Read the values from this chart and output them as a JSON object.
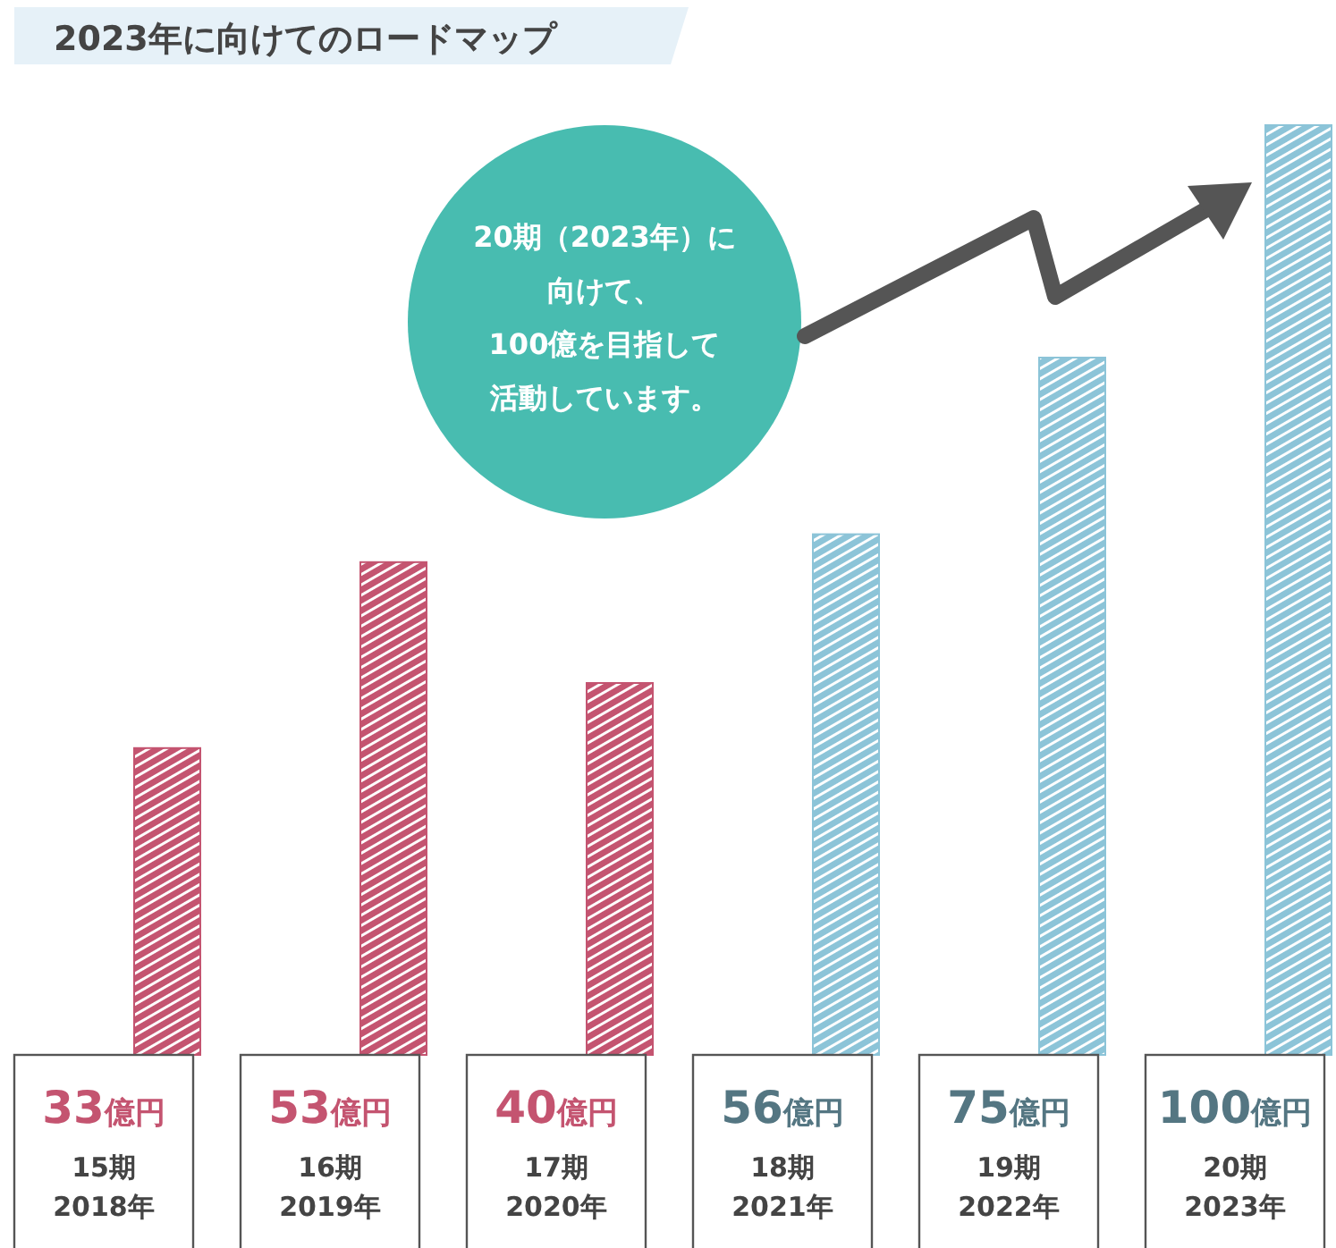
{
  "chart_data": {
    "type": "bar",
    "title": "2023年に向けてのロードマップ",
    "categories": [
      "15期\n2018年",
      "16期\n2019年",
      "17期\n2020年",
      "18期\n2021年",
      "19期\n2022年",
      "20期\n2023年"
    ],
    "values": [
      33,
      53,
      40,
      56,
      75,
      100
    ],
    "colors": [
      "#c45470",
      "#c45470",
      "#c45470",
      "#8cc4d8",
      "#8cc4d8",
      "#8cc4d8"
    ],
    "value_labels": [
      "33億円",
      "53億円",
      "40億円",
      "56億円",
      "75億円",
      "100億円"
    ],
    "annotations": [
      "20期（2023年）に",
      "向けて、",
      "100億を目指して",
      "活動しています。"
    ]
  }
}
